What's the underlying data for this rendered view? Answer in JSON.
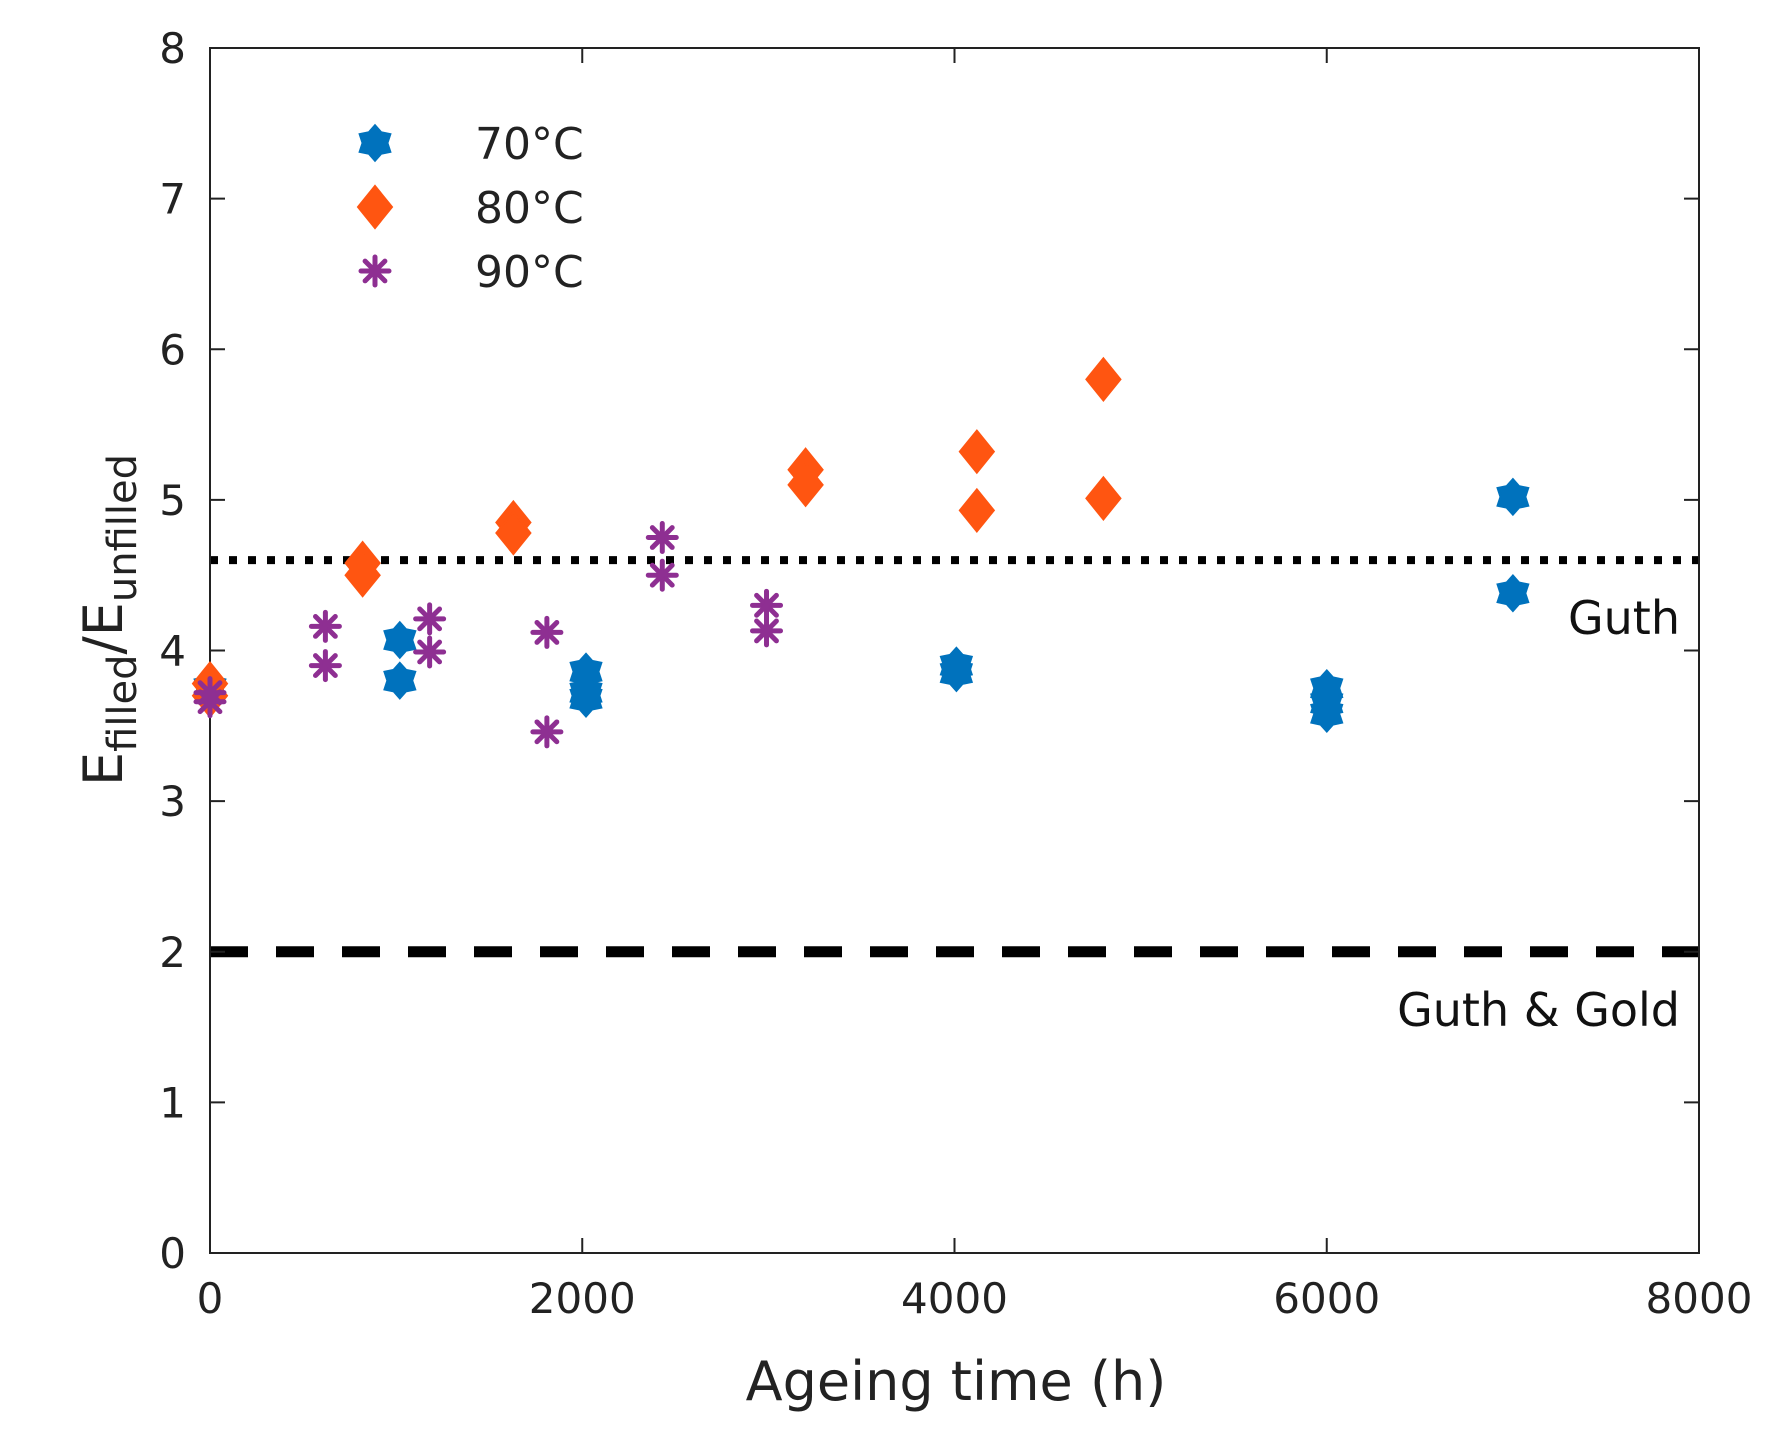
{
  "chart_data": {
    "type": "scatter",
    "xlabel": "Ageing time (h)",
    "ylabel": {
      "E1": "E",
      "sub1": "filled",
      "slash": "/",
      "E2": "E",
      "sub2": "unfilled"
    },
    "xlim": [
      0,
      8000
    ],
    "ylim": [
      0,
      8
    ],
    "x_ticks": [
      0,
      2000,
      4000,
      6000,
      8000
    ],
    "x_tick_labels": [
      "0",
      "2000",
      "4000",
      "6000",
      "8000"
    ],
    "y_ticks": [
      0,
      1,
      2,
      3,
      4,
      5,
      6,
      7,
      8
    ],
    "y_tick_labels": [
      "0",
      "1",
      "2",
      "3",
      "4",
      "5",
      "6",
      "7",
      "8"
    ],
    "grid": false,
    "legend_position": "top-left",
    "series": [
      {
        "name": "70°C",
        "color": "#0072BD",
        "marker": "hexagram",
        "x": [
          0,
          1020,
          1020,
          2020,
          2020,
          2020,
          4010,
          4010,
          6000,
          6000,
          6000,
          7000,
          7000
        ],
        "y": [
          3.75,
          4.07,
          3.8,
          3.86,
          3.72,
          3.68,
          3.9,
          3.85,
          3.75,
          3.65,
          3.58,
          5.02,
          4.38
        ]
      },
      {
        "name": "80°C",
        "color": "#FF5511",
        "marker": "diamond",
        "x": [
          0,
          0,
          820,
          820,
          1630,
          1630,
          3200,
          3200,
          4120,
          4120,
          4800,
          4800
        ],
        "y": [
          3.78,
          3.7,
          4.58,
          4.5,
          4.85,
          4.78,
          5.2,
          5.1,
          5.32,
          4.93,
          5.8,
          5.01
        ]
      },
      {
        "name": "90°C",
        "color": "#8E2F92",
        "marker": "asterisk",
        "x": [
          0,
          0,
          620,
          620,
          1180,
          1180,
          1810,
          1810,
          2430,
          2430,
          2990,
          2990
        ],
        "y": [
          3.72,
          3.66,
          4.16,
          3.9,
          4.21,
          3.99,
          4.12,
          3.46,
          4.75,
          4.5,
          4.3,
          4.13
        ]
      }
    ],
    "reference_lines": [
      {
        "name": "Guth",
        "y": 4.6,
        "style": "dotted",
        "label": "Guth"
      },
      {
        "name": "Guth & Gold",
        "y": 2.0,
        "style": "dashed",
        "label": "Guth & Gold"
      }
    ]
  }
}
